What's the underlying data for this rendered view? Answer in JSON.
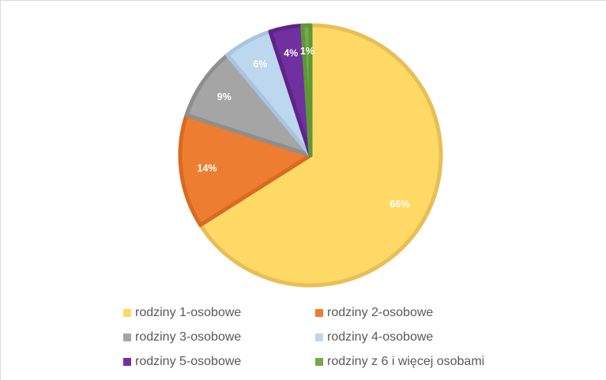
{
  "chart_data": {
    "type": "pie",
    "title": "",
    "slices": [
      {
        "label": "rodziny 1-osobowe",
        "value": 66,
        "display": "66%",
        "color": "#FFD966",
        "edge": "#E7BF55"
      },
      {
        "label": "rodziny 2-osobowe",
        "value": 14,
        "display": "14%",
        "color": "#ED7D31",
        "edge": "#D86A22"
      },
      {
        "label": "rodziny 3-osobowe",
        "value": 9,
        "display": "9%",
        "color": "#A5A5A5",
        "edge": "#8E8E8E"
      },
      {
        "label": "rodziny 4-osobowe",
        "value": 6,
        "display": "6%",
        "color": "#BDD7EE",
        "edge": "#A9C4DF"
      },
      {
        "label": "rodziny 5-osobowe",
        "value": 4,
        "display": "4%",
        "color": "#7030A0",
        "edge": "#5E2486"
      },
      {
        "label": "rodziny z 6 i więcej osobami",
        "value": 1,
        "display": "1%",
        "color": "#70AD47",
        "edge": "#5E9638"
      }
    ],
    "legend_position": "bottom"
  }
}
